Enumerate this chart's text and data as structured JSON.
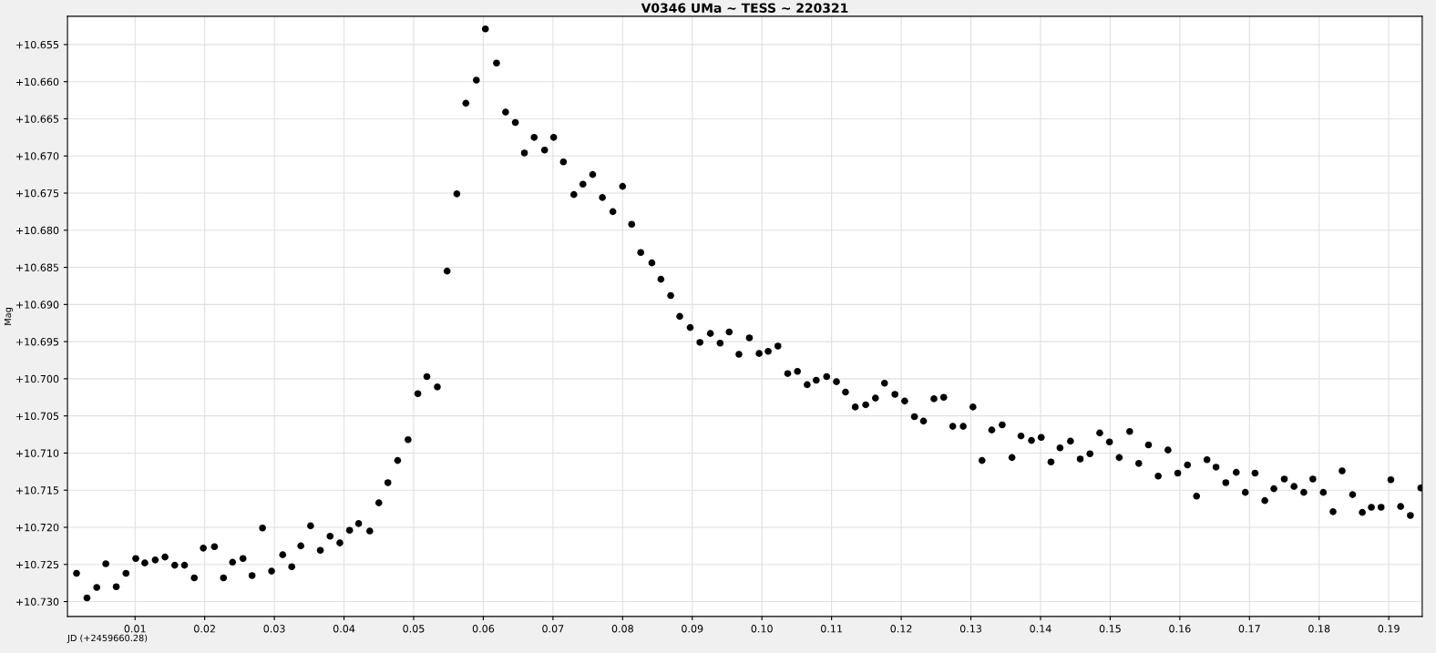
{
  "chart_data": {
    "type": "scatter",
    "title": "V0346 UMa ~ TESS ~ 220321",
    "xlabel": "JD (+2459660.28)",
    "ylabel": "Mag",
    "x": [
      0.0016,
      0.0031,
      0.0045,
      0.0058,
      0.0073,
      0.0087,
      0.0101,
      0.0114,
      0.0129,
      0.0143,
      0.0157,
      0.0171,
      0.0185,
      0.0198,
      0.0214,
      0.0227,
      0.024,
      0.0255,
      0.0268,
      0.0283,
      0.0296,
      0.0312,
      0.0325,
      0.0338,
      0.0352,
      0.0366,
      0.038,
      0.0394,
      0.0408,
      0.0421,
      0.0437,
      0.045,
      0.0463,
      0.0477,
      0.0492,
      0.0506,
      0.0519,
      0.0534,
      0.0548,
      0.0562,
      0.0575,
      0.059,
      0.0603,
      0.0619,
      0.0632,
      0.0646,
      0.0659,
      0.0673,
      0.0688,
      0.0701,
      0.0715,
      0.073,
      0.0743,
      0.0757,
      0.0771,
      0.0786,
      0.08,
      0.0813,
      0.0826,
      0.0842,
      0.0855,
      0.0869,
      0.0882,
      0.0897,
      0.0911,
      0.0926,
      0.094,
      0.0953,
      0.0967,
      0.0982,
      0.0996,
      0.1009,
      0.1023,
      0.1037,
      0.1051,
      0.1065,
      0.1078,
      0.1093,
      0.1107,
      0.112,
      0.1134,
      0.1149,
      0.1163,
      0.1176,
      0.1191,
      0.1205,
      0.1219,
      0.1232,
      0.1247,
      0.1261,
      0.1274,
      0.1289,
      0.1303,
      0.1316,
      0.133,
      0.1345,
      0.1359,
      0.1372,
      0.1387,
      0.1401,
      0.1415,
      0.1428,
      0.1443,
      0.1457,
      0.1471,
      0.1485,
      0.1499,
      0.1513,
      0.1528,
      0.1541,
      0.1555,
      0.1569,
      0.1583,
      0.1597,
      0.1611,
      0.1624,
      0.1639,
      0.1652,
      0.1666,
      0.1681,
      0.1694,
      0.1708,
      0.1722,
      0.1735,
      0.175,
      0.1764,
      0.1778,
      0.1791,
      0.1806,
      0.182,
      0.1833,
      0.1848,
      0.1862,
      0.1875,
      0.1889,
      0.1903,
      0.1917,
      0.1931,
      0.1946
    ],
    "series": [
      {
        "color": "#000000",
        "values": [
          10.7262,
          10.7295,
          10.7281,
          10.7249,
          10.728,
          10.7262,
          10.7242,
          10.7248,
          10.7244,
          10.724,
          10.7251,
          10.7251,
          10.7268,
          10.7228,
          10.7226,
          10.7268,
          10.7247,
          10.7242,
          10.7265,
          10.7201,
          10.7259,
          10.7237,
          10.7253,
          10.7225,
          10.7198,
          10.7231,
          10.7212,
          10.7221,
          10.7204,
          10.7195,
          10.7205,
          10.7167,
          10.714,
          10.711,
          10.7082,
          10.702,
          10.6997,
          10.7011,
          10.6855,
          10.6751,
          10.6629,
          10.6598,
          10.6529,
          10.6575,
          10.6641,
          10.6655,
          10.6696,
          10.6675,
          10.6692,
          10.6675,
          10.6708,
          10.6752,
          10.6738,
          10.6725,
          10.6756,
          10.6775,
          10.6741,
          10.6792,
          10.683,
          10.6844,
          10.6866,
          10.6888,
          10.6916,
          10.6931,
          10.6951,
          10.6939,
          10.6952,
          10.6937,
          10.6967,
          10.6945,
          10.6966,
          10.6963,
          10.6956,
          10.6993,
          10.699,
          10.7008,
          10.7002,
          10.6997,
          10.7004,
          10.7018,
          10.7038,
          10.7035,
          10.7026,
          10.7006,
          10.7021,
          10.703,
          10.7051,
          10.7057,
          10.7027,
          10.7025,
          10.7064,
          10.7064,
          10.7038,
          10.711,
          10.7069,
          10.7062,
          10.7106,
          10.7077,
          10.7083,
          10.7079,
          10.7112,
          10.7093,
          10.7084,
          10.7108,
          10.7101,
          10.7073,
          10.7085,
          10.7106,
          10.7071,
          10.7114,
          10.7089,
          10.7131,
          10.7096,
          10.7127,
          10.7116,
          10.7158,
          10.7109,
          10.7119,
          10.714,
          10.7126,
          10.7153,
          10.7127,
          10.7164,
          10.7148,
          10.7135,
          10.7145,
          10.7153,
          10.7135,
          10.7153,
          10.7179,
          10.7124,
          10.7156,
          10.718,
          10.7173,
          10.7173,
          10.7136,
          10.7172,
          10.7184,
          10.7147
        ]
      }
    ],
    "xlim": [
      0.0003,
      0.1948
    ],
    "ylim": [
      10.732,
      10.6512
    ],
    "xticks": [
      {
        "value": 0.01,
        "label": "0.01"
      },
      {
        "value": 0.02,
        "label": "0.02"
      },
      {
        "value": 0.03,
        "label": "0.03"
      },
      {
        "value": 0.04,
        "label": "0.04"
      },
      {
        "value": 0.05,
        "label": "0.05"
      },
      {
        "value": 0.06,
        "label": "0.06"
      },
      {
        "value": 0.07,
        "label": "0.07"
      },
      {
        "value": 0.08,
        "label": "0.08"
      },
      {
        "value": 0.09,
        "label": "0.09"
      },
      {
        "value": 0.1,
        "label": "0.10"
      },
      {
        "value": 0.11,
        "label": "0.11"
      },
      {
        "value": 0.12,
        "label": "0.12"
      },
      {
        "value": 0.13,
        "label": "0.13"
      },
      {
        "value": 0.14,
        "label": "0.14"
      },
      {
        "value": 0.15,
        "label": "0.15"
      },
      {
        "value": 0.16,
        "label": "0.16"
      },
      {
        "value": 0.17,
        "label": "0.17"
      },
      {
        "value": 0.18,
        "label": "0.18"
      },
      {
        "value": 0.19,
        "label": "0.19"
      }
    ],
    "yticks": [
      {
        "value": 10.655,
        "label": "+10.655"
      },
      {
        "value": 10.66,
        "label": "+10.660"
      },
      {
        "value": 10.665,
        "label": "+10.665"
      },
      {
        "value": 10.67,
        "label": "+10.670"
      },
      {
        "value": 10.675,
        "label": "+10.675"
      },
      {
        "value": 10.68,
        "label": "+10.680"
      },
      {
        "value": 10.685,
        "label": "+10.685"
      },
      {
        "value": 10.69,
        "label": "+10.690"
      },
      {
        "value": 10.695,
        "label": "+10.695"
      },
      {
        "value": 10.7,
        "label": "+10.700"
      },
      {
        "value": 10.705,
        "label": "+10.705"
      },
      {
        "value": 10.71,
        "label": "+10.710"
      },
      {
        "value": 10.715,
        "label": "+10.715"
      },
      {
        "value": 10.72,
        "label": "+10.720"
      },
      {
        "value": 10.725,
        "label": "+10.725"
      },
      {
        "value": 10.73,
        "label": "+10.730"
      }
    ],
    "grid": true,
    "marker": "circle"
  }
}
